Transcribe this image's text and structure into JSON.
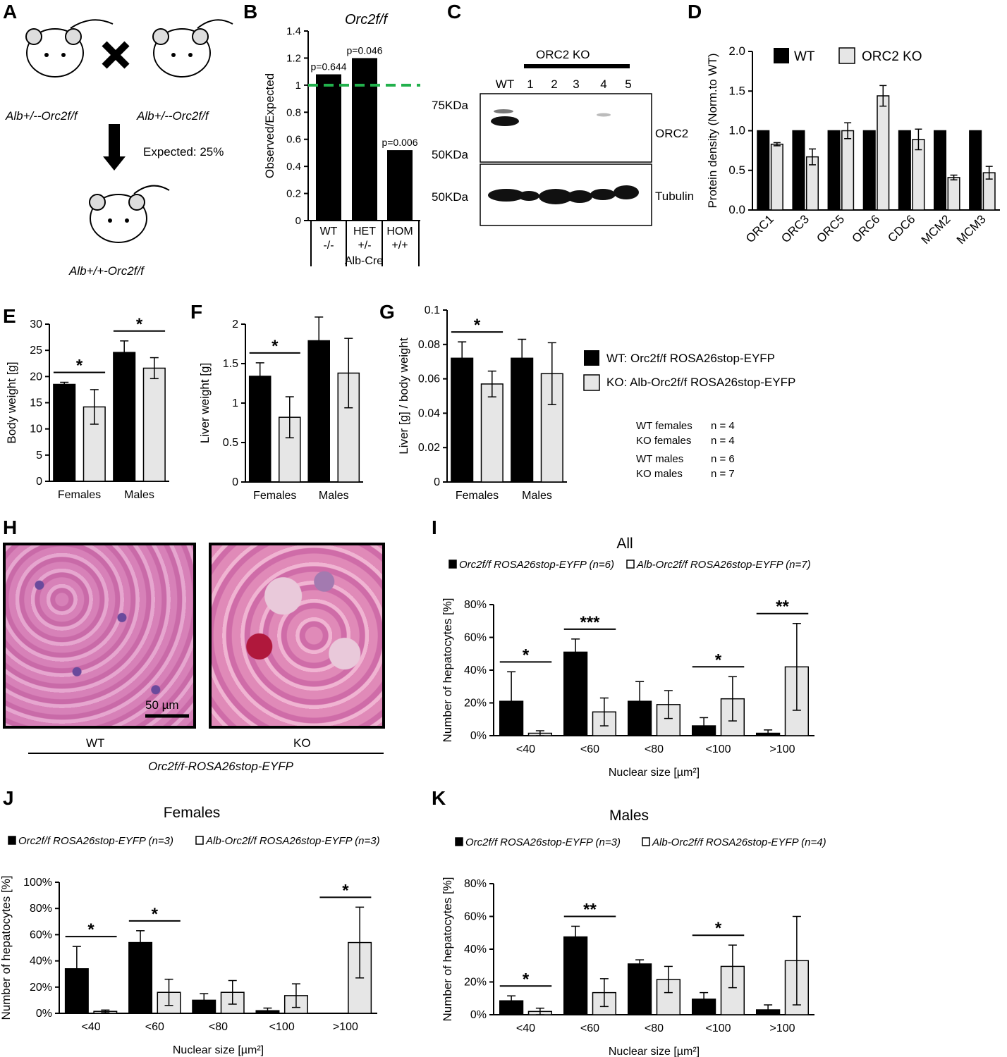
{
  "panels": {
    "A": "A",
    "B": "B",
    "C": "C",
    "D": "D",
    "E": "E",
    "F": "F",
    "G": "G",
    "H": "H",
    "I": "I",
    "J": "J",
    "K": "K"
  },
  "colors": {
    "wt": "#000000",
    "ko": "#e6e6e6",
    "dash": "#22b14c"
  },
  "panelA": {
    "parent1": "Alb+/--Orc2f/f",
    "parent2": "Alb+/--Orc2f/f",
    "child": "Alb+/+-Orc2f/f",
    "expected": "Expected: 25%"
  },
  "panelC": {
    "group": "ORC2 KO",
    "lanes": [
      "WT",
      "1",
      "2",
      "3",
      "4",
      "5"
    ],
    "markers": [
      "75KDa",
      "50KDa",
      "50KDa"
    ],
    "bands": [
      "ORC2",
      "Tubulin"
    ]
  },
  "panelH": {
    "wt": "WT",
    "ko": "KO",
    "scale": "50 µm",
    "genotype": "Orc2f/f-ROSA26stop-EYFP"
  },
  "legendEG": {
    "wt": "WT: Orc2f/f ROSA26stop-EYFP",
    "ko": "KO: Alb-Orc2f/f ROSA26stop-EYFP"
  },
  "nTable": [
    {
      "label": "WT females",
      "n": "n = 4"
    },
    {
      "label": "KO females",
      "n": "n = 4"
    },
    {
      "label": "WT males",
      "n": "n = 6"
    },
    {
      "label": "KO males",
      "n": "n = 7"
    }
  ],
  "chart_data": [
    {
      "panel": "B",
      "type": "bar",
      "title": "Orc2f/f",
      "ylabel": "Observed/Expected",
      "ylim": [
        0,
        1.4
      ],
      "yticks": [
        "0",
        "0.2",
        "0.4",
        "0.6",
        "0.8",
        "1",
        "1.2",
        "1.4"
      ],
      "categories": [
        "WT -/-",
        "HET +/-",
        "HOM +/+"
      ],
      "groupLabel": "Alb-Cre",
      "values": [
        1.08,
        1.2,
        0.52
      ],
      "pvalues": [
        "p=0.644",
        "p=0.046",
        "p=0.006"
      ],
      "reference_line": 1
    },
    {
      "panel": "D",
      "type": "bar",
      "ylabel": "Protein density (Norm.to WT)",
      "ylim": [
        0,
        2.0
      ],
      "yticks": [
        "0.0",
        "0.5",
        "1.0",
        "1.5",
        "2.0"
      ],
      "categories": [
        "ORC1",
        "ORC3",
        "ORC5",
        "ORC6",
        "CDC6",
        "MCM2",
        "MCM3"
      ],
      "series": [
        {
          "name": "WT",
          "values": [
            1,
            1,
            1,
            1,
            1,
            1,
            1
          ],
          "err": [
            0,
            0,
            0,
            0,
            0,
            0,
            0
          ]
        },
        {
          "name": "ORC2 KO",
          "values": [
            0.83,
            0.67,
            1.0,
            1.44,
            0.89,
            0.41,
            0.47
          ],
          "err": [
            0.02,
            0.1,
            0.1,
            0.13,
            0.13,
            0.03,
            0.08
          ]
        }
      ]
    },
    {
      "panel": "E",
      "type": "bar",
      "ylabel": "Body weight [g]",
      "ylim": [
        0,
        30
      ],
      "yticks": [
        "0",
        "5",
        "10",
        "15",
        "20",
        "25",
        "30"
      ],
      "categories": [
        "Females",
        "Males"
      ],
      "series": [
        {
          "values": [
            18.5,
            24.6
          ],
          "err": [
            0.4,
            2.2
          ]
        },
        {
          "values": [
            14.2,
            21.6
          ],
          "err": [
            3.3,
            2.0
          ]
        }
      ],
      "sig": [
        "*",
        "*"
      ]
    },
    {
      "panel": "F",
      "type": "bar",
      "ylabel": "Liver weight [g]",
      "ylim": [
        0,
        2
      ],
      "yticks": [
        "0",
        "0.5",
        "1",
        "1.5",
        "2"
      ],
      "categories": [
        "Females",
        "Males"
      ],
      "series": [
        {
          "values": [
            1.34,
            1.79
          ],
          "err": [
            0.17,
            0.3
          ]
        },
        {
          "values": [
            0.82,
            1.38
          ],
          "err": [
            0.26,
            0.44
          ]
        }
      ],
      "sig": [
        "*",
        ""
      ]
    },
    {
      "panel": "G",
      "type": "bar",
      "ylabel": "Liver [g] / body weight",
      "ylim": [
        0,
        0.1
      ],
      "yticks": [
        "0",
        "0.02",
        "0.04",
        "0.06",
        "0.08",
        "0.1"
      ],
      "categories": [
        "Females",
        "Males"
      ],
      "series": [
        {
          "values": [
            0.072,
            0.072
          ],
          "err": [
            0.0095,
            0.011
          ]
        },
        {
          "values": [
            0.057,
            0.063
          ],
          "err": [
            0.0075,
            0.018
          ]
        }
      ],
      "sig": [
        "*",
        ""
      ]
    },
    {
      "panel": "I",
      "type": "bar",
      "title": "All",
      "xlabel": "Nuclear size [µm²]",
      "ylabel": "Number of hepatocytes [%]",
      "ylim": [
        0,
        80
      ],
      "yticks": [
        "0%",
        "20%",
        "40%",
        "60%",
        "80%"
      ],
      "categories": [
        "<40",
        "<60",
        "<80",
        "<100",
        ">100"
      ],
      "series": [
        {
          "name": "Orc2f/f ROSA26stop-EYFP (n=6)",
          "values": [
            21,
            51,
            21,
            6,
            1.5
          ],
          "err": [
            18,
            8,
            12,
            5,
            2
          ]
        },
        {
          "name": "Alb-Orc2f/f ROSA26stop-EYFP (n=7)",
          "values": [
            1.5,
            14.5,
            19,
            22.5,
            42
          ],
          "err": [
            1.5,
            8.5,
            8.5,
            13.5,
            26.5
          ]
        }
      ],
      "sig": [
        "*",
        "***",
        "",
        "*",
        "**"
      ]
    },
    {
      "panel": "J",
      "type": "bar",
      "title": "Females",
      "xlabel": "Nuclear size [µm²]",
      "ylabel": "Number of hepatocytes [%]",
      "ylim": [
        0,
        100
      ],
      "yticks": [
        "0%",
        "20%",
        "40%",
        "60%",
        "80%",
        "100%"
      ],
      "categories": [
        "<40",
        "<60",
        "<80",
        "<100",
        ">100"
      ],
      "series": [
        {
          "name": "Orc2f/f ROSA26stop-EYFP (n=3)",
          "values": [
            34,
            54,
            10,
            2,
            0
          ],
          "err": [
            17,
            9,
            5,
            2,
            0
          ]
        },
        {
          "name": "Alb-Orc2f/f ROSA26stop-EYFP (n=3)",
          "values": [
            1.5,
            16,
            16,
            13.5,
            54
          ],
          "err": [
            1,
            10,
            9,
            9,
            27
          ]
        }
      ],
      "sig": [
        "*",
        "*",
        "",
        "",
        "*"
      ]
    },
    {
      "panel": "K",
      "type": "bar",
      "title": "Males",
      "xlabel": "Nuclear size [µm²]",
      "ylabel": "Number of hepatocytes [%]",
      "ylim": [
        0,
        80
      ],
      "yticks": [
        "0%",
        "20%",
        "40%",
        "60%",
        "80%"
      ],
      "categories": [
        "<40",
        "<60",
        "<80",
        "<100",
        ">100"
      ],
      "series": [
        {
          "name": "Orc2f/f ROSA26stop-EYFP (n=3)",
          "values": [
            8.5,
            47.5,
            31,
            9.5,
            3
          ],
          "err": [
            3,
            6.5,
            2.5,
            4,
            3
          ]
        },
        {
          "name": "Alb-Orc2f/f ROSA26stop-EYFP (n=4)",
          "values": [
            2,
            13.5,
            21.5,
            29.5,
            33
          ],
          "err": [
            2,
            8.5,
            8,
            13,
            27
          ]
        }
      ],
      "sig": [
        "*",
        "**",
        "",
        "*",
        ""
      ]
    }
  ]
}
